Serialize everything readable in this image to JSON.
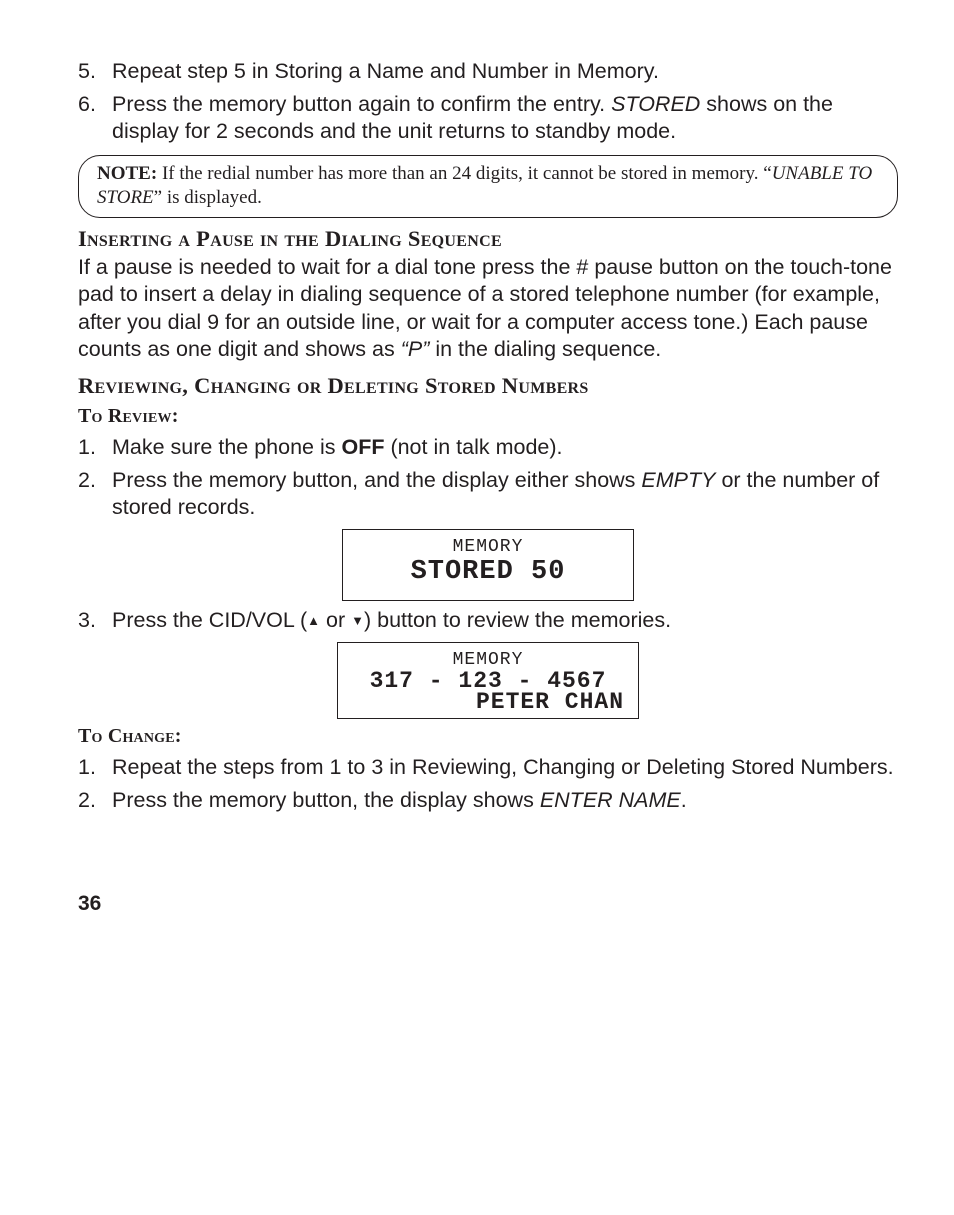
{
  "list1": {
    "i5": {
      "num": "5.",
      "text_a": "Repeat step 5 in Storing a Name and Number in Memory."
    },
    "i6": {
      "num": "6.",
      "text_a": "Press the memory button again to confirm the entry. ",
      "em": "STORED",
      "text_b": " shows on the display for 2 seconds and the unit returns to standby mode."
    }
  },
  "note": {
    "label": "NOTE:",
    "text_a": " If the redial number has more than an 24 digits, it cannot be stored in memory. “",
    "em": "UNABLE TO STORE",
    "text_b": "” is displayed."
  },
  "h_pause": "Inserting a Pause in the Dialing Sequence",
  "p_pause_a": "If a pause is needed to wait for a dial tone press the # pause button on the touch-tone pad to insert a delay in dialing sequence of a stored telephone number (for example, after you dial 9 for an outside line, or wait for a computer access tone.) Each pause counts as one digit and shows as ",
  "p_pause_em": "“P”",
  "p_pause_b": " in the dialing sequence.",
  "h_review": "Reviewing, Changing or Deleting Stored Numbers",
  "sub_review": "To Review:",
  "review_list": {
    "i1": {
      "num": "1.",
      "text_a": "Make sure the phone is ",
      "strong": "OFF",
      "text_b": " (not in talk mode)."
    },
    "i2": {
      "num": "2.",
      "text_a": "Press the memory button, and the display either shows ",
      "em": "EMPTY",
      "text_b": " or the number of stored records."
    },
    "i3": {
      "num": "3.",
      "text_a": "Press the CID/VOL (",
      "up": "▲",
      "mid": " or ",
      "down": "▼",
      "text_b": ") button to review the memories."
    }
  },
  "lcd1": {
    "line1": "MEMORY",
    "line2": "STORED 50"
  },
  "lcd2": {
    "line1": "MEMORY",
    "line2": "317 - 123 - 4567",
    "line3": "PETER CHAN"
  },
  "sub_change": "To Change:",
  "change_list": {
    "i1": {
      "num": "1.",
      "text": "Repeat the steps from 1 to 3 in Reviewing, Changing or Deleting Stored Numbers."
    },
    "i2": {
      "num": "2.",
      "text_a": "Press the memory button, the display shows ",
      "em": "ENTER NAME",
      "text_b": "."
    }
  },
  "page": "36"
}
